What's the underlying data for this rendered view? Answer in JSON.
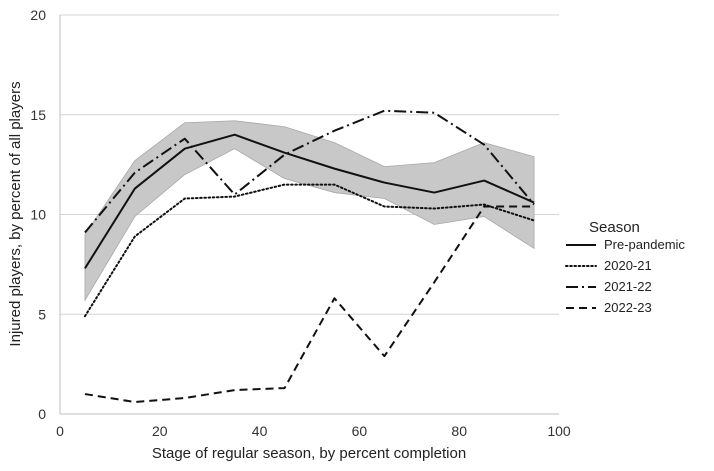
{
  "chart_data": {
    "type": "line",
    "xlabel": "Stage of regular season, by percent completion",
    "ylabel": "Injured players, by percent of all players",
    "xlim": [
      0,
      100
    ],
    "ylim": [
      0,
      20
    ],
    "xticks": [
      0,
      20,
      40,
      60,
      80,
      100
    ],
    "yticks": [
      0,
      5,
      10,
      15,
      20
    ],
    "grid": "horizontal",
    "legend": {
      "title": "Season",
      "placement": "right"
    },
    "band": {
      "x": [
        5,
        15,
        25,
        35,
        45,
        55,
        65,
        75,
        85,
        95
      ],
      "lower": [
        5.7,
        9.9,
        12.0,
        13.3,
        11.8,
        11.1,
        10.8,
        9.5,
        9.9,
        8.3
      ],
      "upper": [
        9.0,
        12.7,
        14.6,
        14.7,
        14.4,
        13.6,
        12.4,
        12.6,
        13.6,
        12.9
      ],
      "color": "#c8c8c8"
    },
    "series": [
      {
        "name": "Pre-pandemic",
        "style": "solid",
        "x": [
          5,
          15,
          25,
          35,
          45,
          55,
          65,
          75,
          85,
          95
        ],
        "values": [
          7.3,
          11.3,
          13.3,
          14.0,
          13.1,
          12.3,
          11.6,
          11.1,
          11.7,
          10.6
        ]
      },
      {
        "name": "2020-21",
        "style": "dotted",
        "x": [
          5,
          15,
          25,
          35,
          45,
          55,
          65,
          75,
          85,
          95
        ],
        "values": [
          4.9,
          8.9,
          10.8,
          10.9,
          11.5,
          11.5,
          10.4,
          10.3,
          10.5,
          9.7
        ]
      },
      {
        "name": "2021-22",
        "style": "dashdot",
        "x": [
          5,
          15,
          25,
          35,
          45,
          55,
          65,
          75,
          85,
          95
        ],
        "values": [
          9.1,
          12.1,
          13.8,
          11.0,
          13.0,
          14.2,
          15.2,
          15.1,
          13.5,
          10.5
        ]
      },
      {
        "name": "2022-23",
        "style": "dashed",
        "x": [
          5,
          15,
          25,
          35,
          45,
          55,
          65,
          75,
          85,
          95
        ],
        "values": [
          1.0,
          0.6,
          0.8,
          1.2,
          1.3,
          5.8,
          2.9,
          6.6,
          10.4,
          10.4
        ]
      }
    ]
  }
}
